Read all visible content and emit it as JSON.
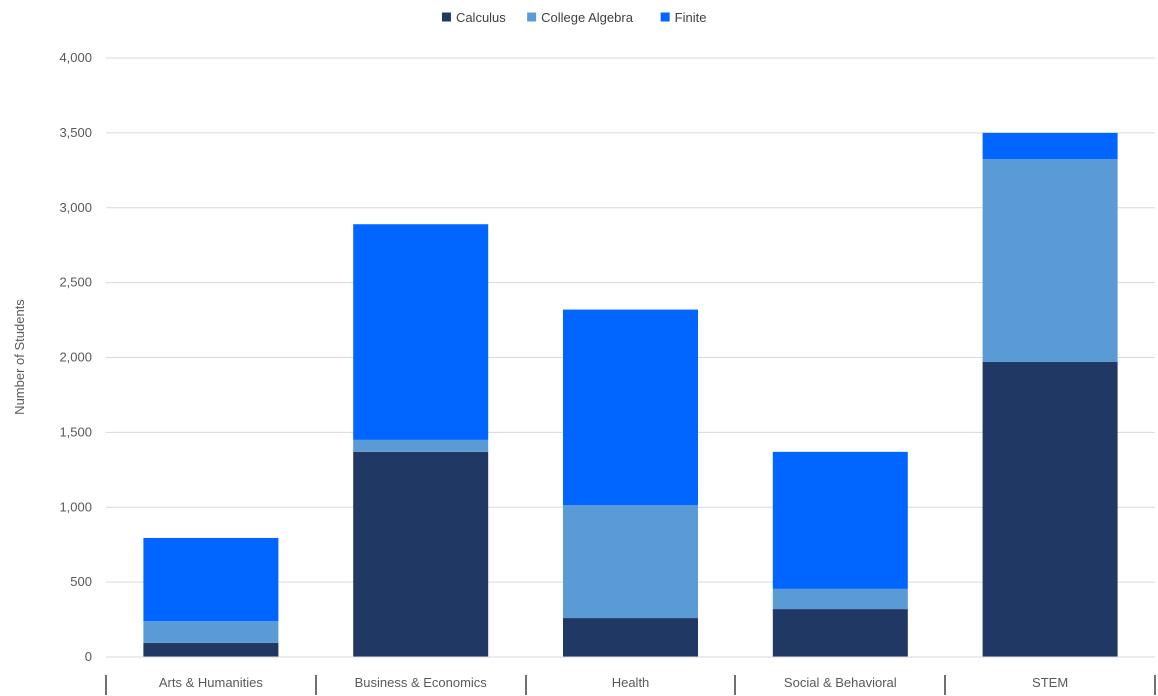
{
  "chart_data": {
    "type": "bar",
    "stacked": true,
    "title": "",
    "xlabel": "",
    "ylabel": "Number of Students",
    "ylim": [
      0,
      4000
    ],
    "yticks": [
      0,
      500,
      1000,
      1500,
      2000,
      2500,
      3000,
      3500,
      4000
    ],
    "grid": true,
    "legend_position": "top",
    "categories": [
      "Arts & Humanities",
      "Business & Economics",
      "Health",
      "Social & Behavioral",
      "STEM"
    ],
    "series": [
      {
        "name": "Calculus",
        "color": "#203864",
        "values": [
          95,
          1370,
          260,
          320,
          1970
        ]
      },
      {
        "name": "College Algebra",
        "color": "#5b9bd5",
        "values": [
          145,
          80,
          755,
          135,
          1355
        ]
      },
      {
        "name": "Finite",
        "color": "#0066ff",
        "values": [
          555,
          1440,
          1305,
          915,
          175
        ]
      }
    ]
  }
}
